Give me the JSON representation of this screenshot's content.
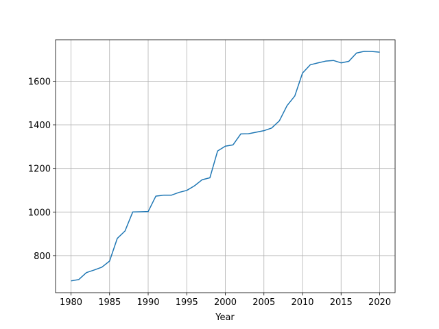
{
  "chart_data": {
    "type": "line",
    "x_label": "Year",
    "x": [
      1980,
      1981,
      1982,
      1983,
      1984,
      1985,
      1986,
      1987,
      1988,
      1989,
      1990,
      1991,
      1992,
      1993,
      1994,
      1995,
      1996,
      1997,
      1998,
      1999,
      2000,
      2001,
      2002,
      2003,
      2004,
      2005,
      2006,
      2007,
      2008,
      2009,
      2010,
      2011,
      2012,
      2013,
      2014,
      2015,
      2016,
      2017,
      2018,
      2019,
      2020
    ],
    "values": [
      684,
      690,
      722,
      734,
      747,
      775,
      879,
      913,
      1000,
      1001,
      1002,
      1073,
      1077,
      1077,
      1090,
      1099,
      1120,
      1148,
      1157,
      1280,
      1302,
      1308,
      1358,
      1359,
      1366,
      1373,
      1385,
      1418,
      1488,
      1532,
      1637,
      1675,
      1684,
      1692,
      1695,
      1684,
      1691,
      1729,
      1737,
      1736,
      1733
    ],
    "color": "#1f77b4",
    "xlim": [
      1978,
      2022
    ],
    "xticks": [
      1980,
      1985,
      1990,
      1995,
      2000,
      2005,
      2010,
      2015,
      2020
    ],
    "ylim": [
      630,
      1790
    ],
    "yticks": [
      800,
      1000,
      1200,
      1400,
      1600
    ],
    "grid": true
  }
}
